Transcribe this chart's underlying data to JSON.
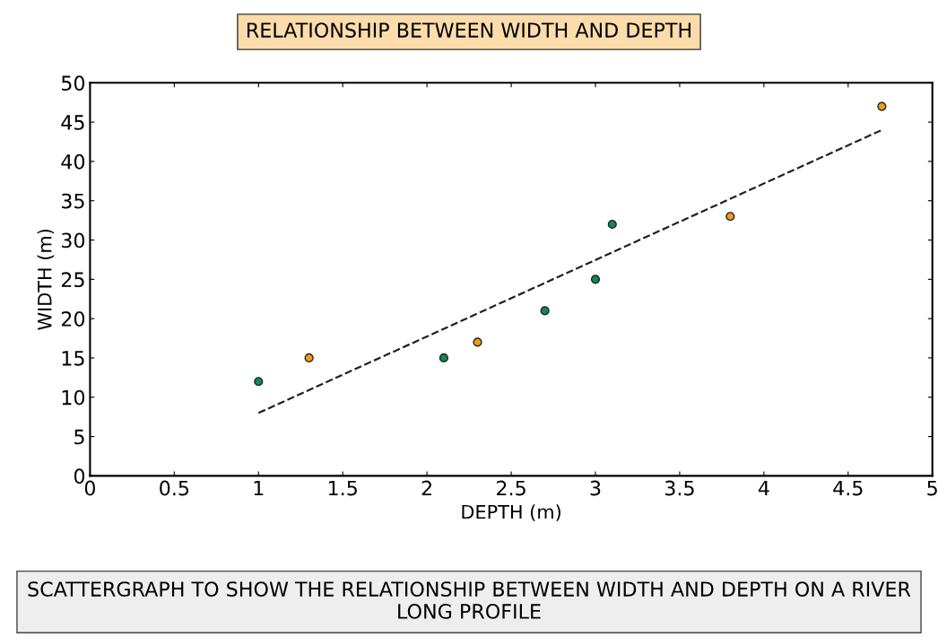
{
  "chart_data": {
    "type": "scatter",
    "title": "RELATIONSHIP BETWEEN WIDTH AND DEPTH",
    "xlabel": "DEPTH (m)",
    "ylabel": "WIDTH (m)",
    "annotations": [
      "SCATTERGRAPH TO SHOW THE RELATIONSHIP BETWEEN WIDTH AND DEPTH ON A RIVER LONG PROFILE"
    ],
    "series": [
      {
        "marker": "circle",
        "color": "#0f8a4f",
        "x": [
          1,
          2.1,
          2.7,
          3,
          3.1
        ],
        "values": [
          12,
          15,
          21,
          25,
          32
        ]
      },
      {
        "marker": "circle",
        "color": "#f29a1a",
        "x": [
          1.3,
          2.3,
          3.8,
          4.7
        ],
        "values": [
          15,
          17,
          33,
          47
        ]
      },
      {
        "type": "line",
        "marker": "none",
        "line_style": "dashed",
        "color": "#222222",
        "x": [
          1,
          4.7
        ],
        "values": [
          8,
          44
        ]
      }
    ],
    "xlim": [
      0,
      5
    ],
    "ylim": [
      0,
      50
    ],
    "xticks": [
      0,
      0.5,
      1,
      1.5,
      2,
      2.5,
      3,
      3.5,
      4,
      4.5,
      5
    ],
    "yticks": [
      0,
      5,
      10,
      15,
      20,
      25,
      30,
      35,
      40,
      45,
      50
    ],
    "grid": false,
    "legend": false
  }
}
